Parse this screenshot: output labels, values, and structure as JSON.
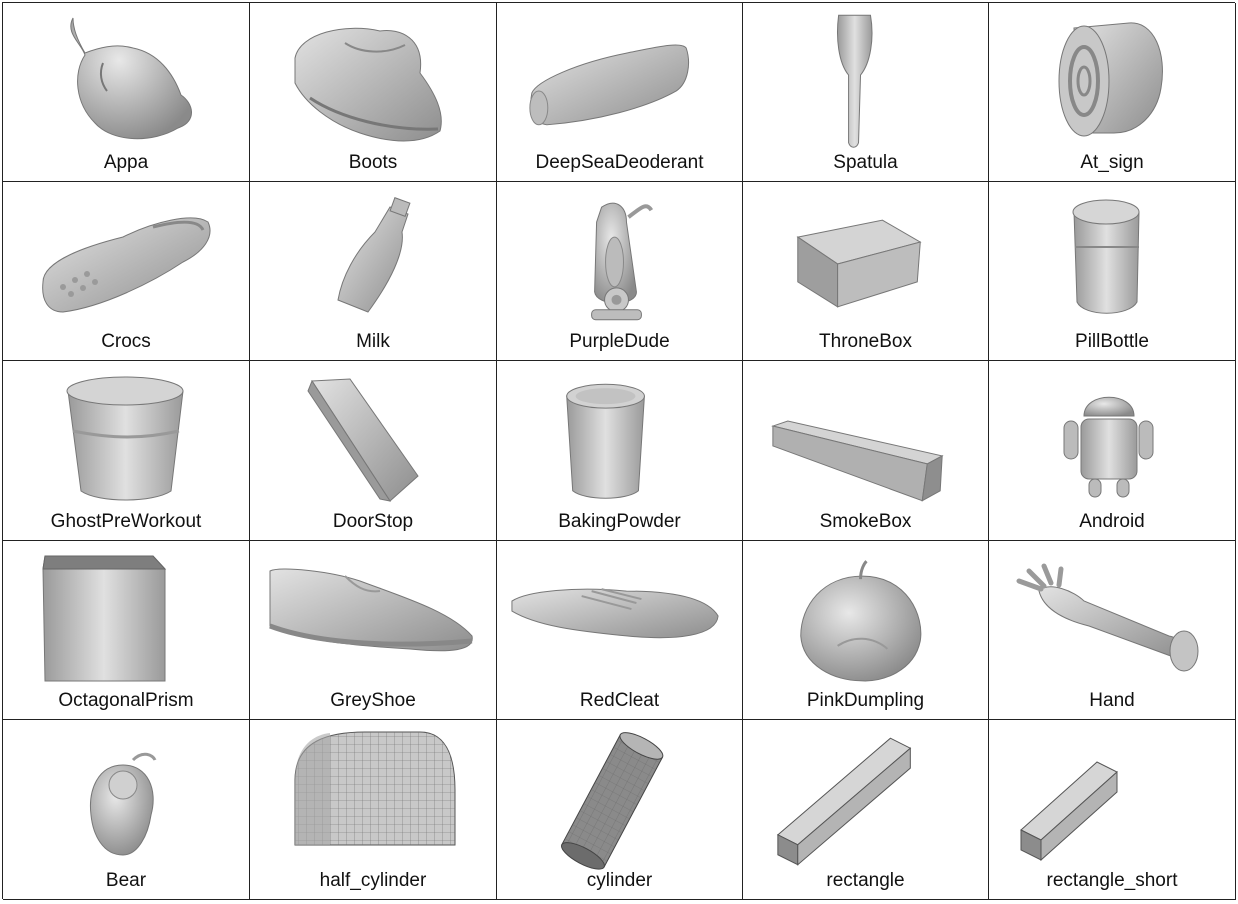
{
  "objects": [
    {
      "label": "Appa"
    },
    {
      "label": "Boots"
    },
    {
      "label": "DeepSeaDeoderant"
    },
    {
      "label": "Spatula"
    },
    {
      "label": "At_sign"
    },
    {
      "label": "Crocs"
    },
    {
      "label": "Milk"
    },
    {
      "label": "PurpleDude"
    },
    {
      "label": "ThroneBox"
    },
    {
      "label": "PillBottle"
    },
    {
      "label": "GhostPreWorkout"
    },
    {
      "label": "DoorStop"
    },
    {
      "label": "BakingPowder"
    },
    {
      "label": "SmokeBox"
    },
    {
      "label": "Android"
    },
    {
      "label": "OctagonalPrism"
    },
    {
      "label": "GreyShoe"
    },
    {
      "label": "RedCleat"
    },
    {
      "label": "PinkDumpling"
    },
    {
      "label": "Hand"
    },
    {
      "label": "Bear"
    },
    {
      "label": "half_cylinder"
    },
    {
      "label": "cylinder"
    },
    {
      "label": "rectangle"
    },
    {
      "label": "rectangle_short"
    }
  ]
}
